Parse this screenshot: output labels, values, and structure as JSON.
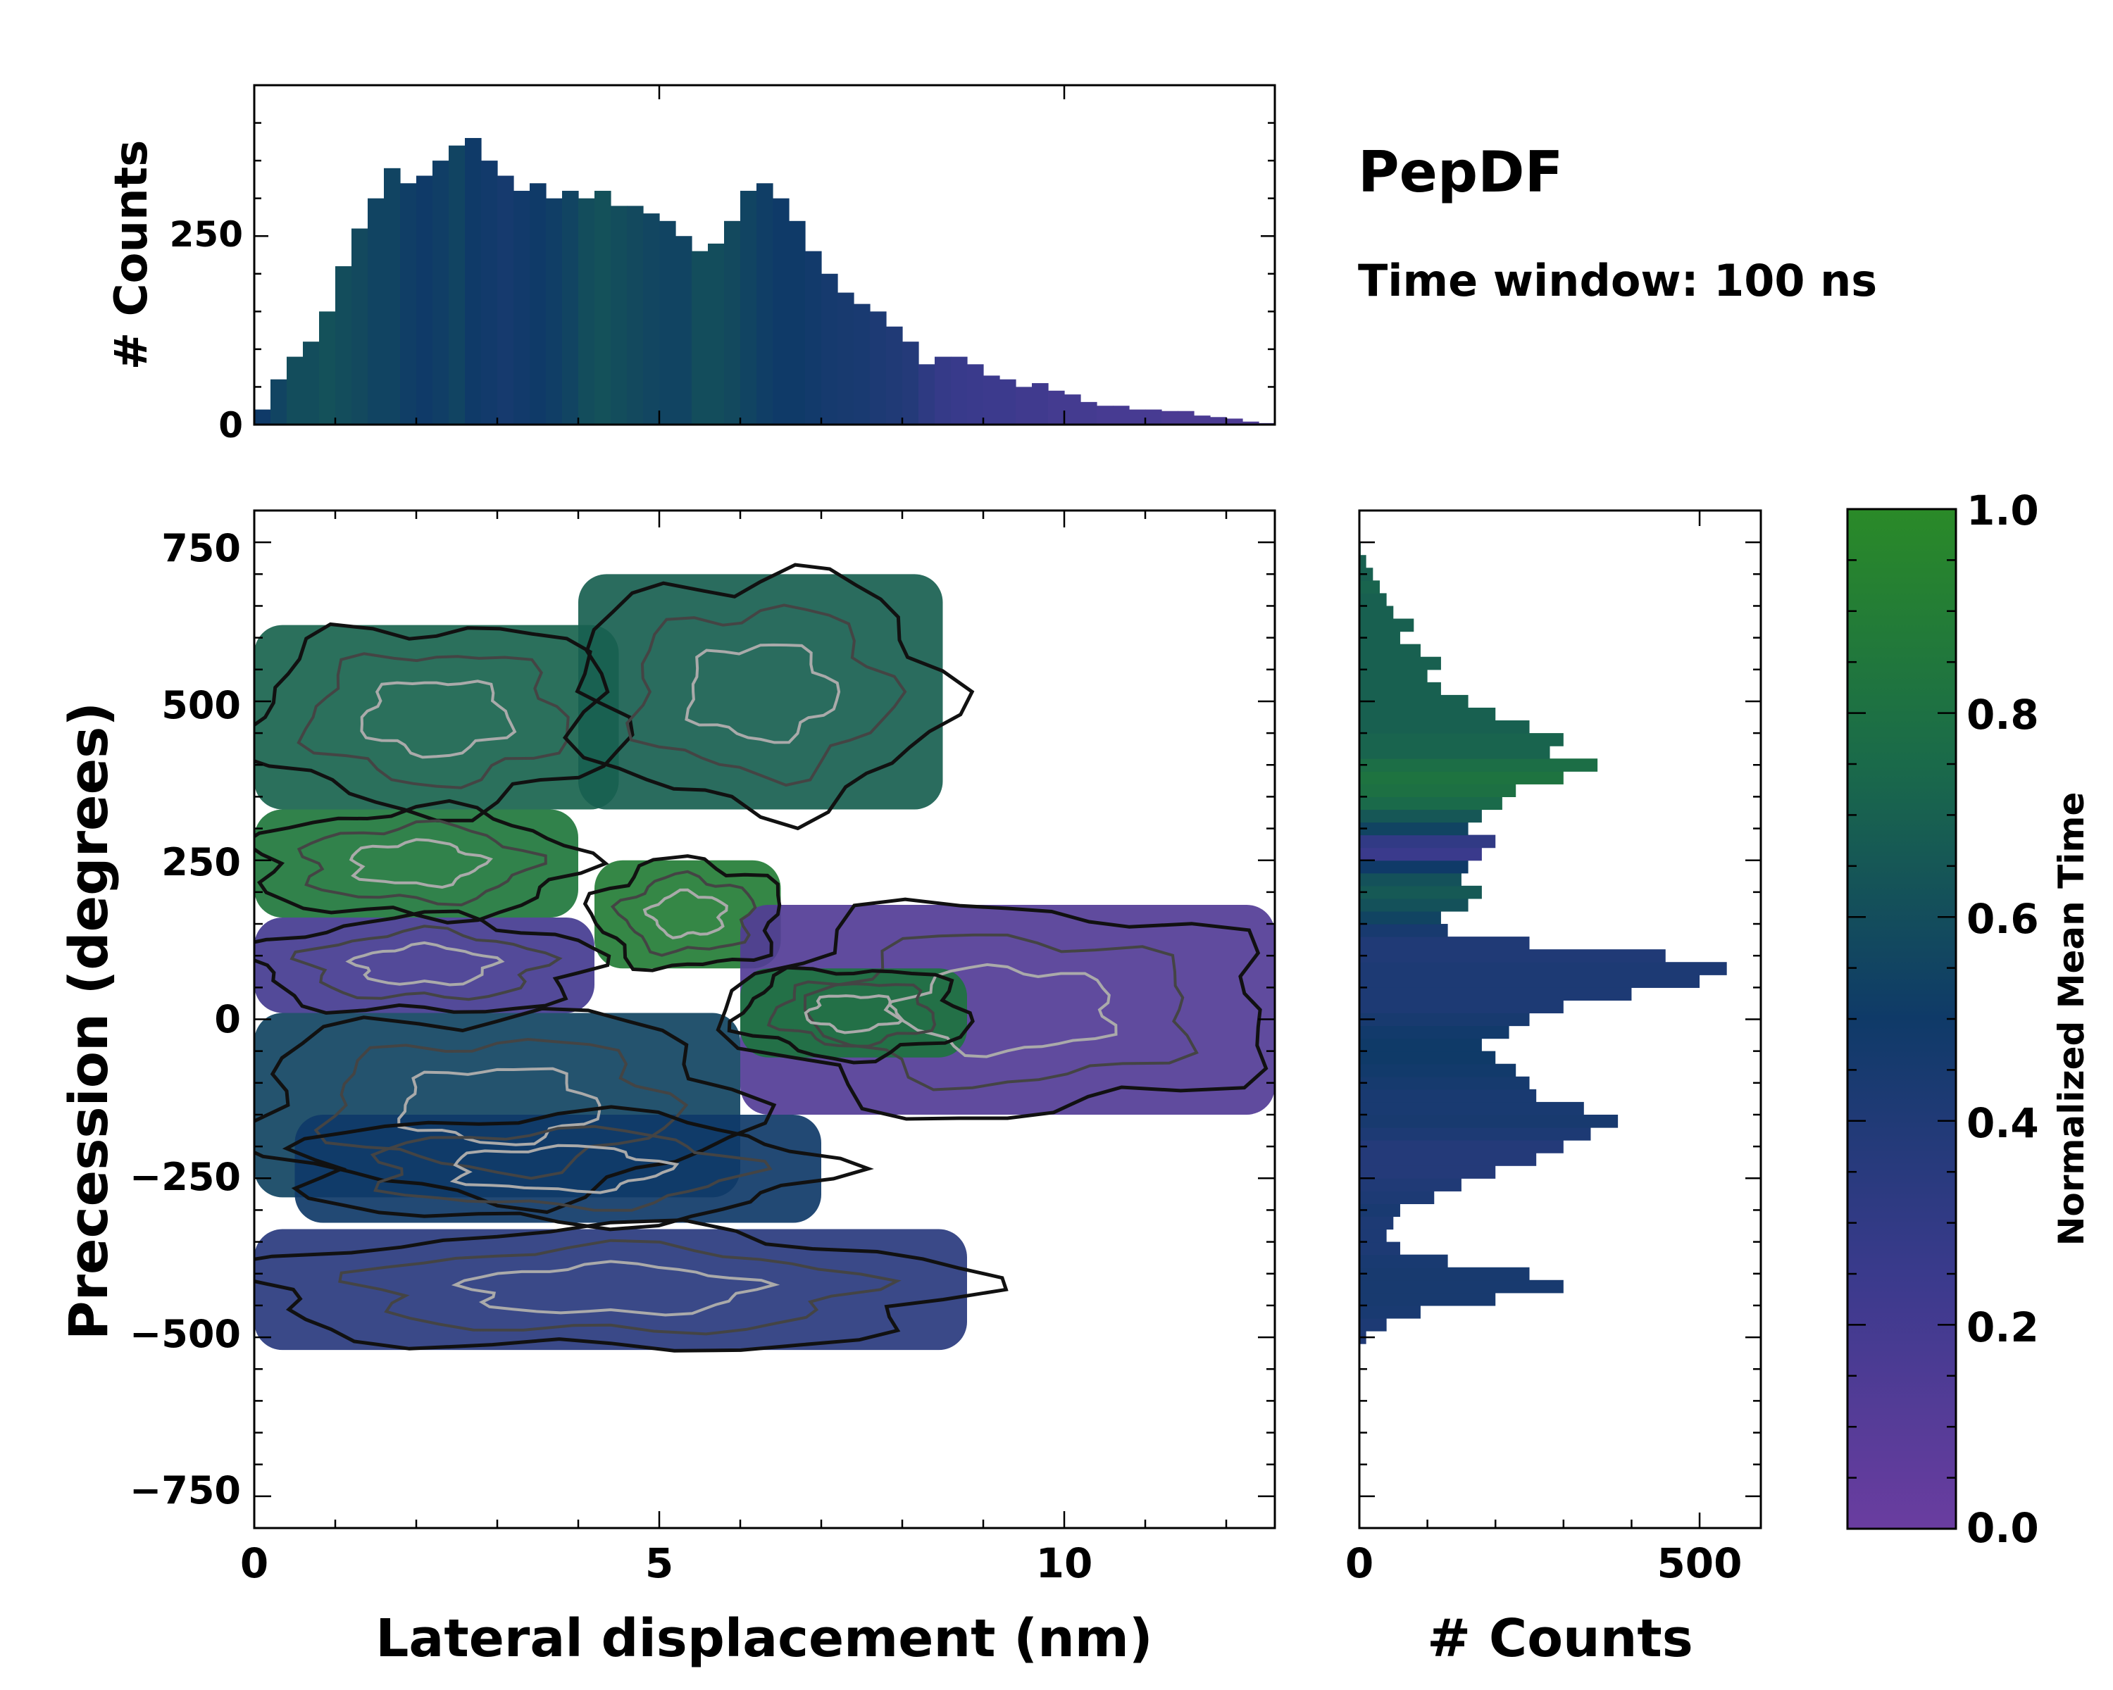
{
  "title": "PepDF",
  "subtitle": "Time window: 100 ns",
  "colors": {
    "purple": "#6a3da0",
    "navy": "#0f3a68",
    "teal": "#1a5e5a",
    "green": "#2a8a28",
    "contour_dark": "#111111",
    "contour_light": "#aaaaaa"
  },
  "chart_data": [
    {
      "id": "top_histogram",
      "type": "bar",
      "ylabel": "# Counts",
      "xlim": [
        0,
        12.6
      ],
      "ylim": [
        0,
        450
      ],
      "yticks": [
        "0",
        "250"
      ],
      "ytick_values": [
        0,
        250
      ],
      "color_by": "Normalized Mean Time",
      "x_centers": [
        0.1,
        0.3,
        0.5,
        0.7,
        0.9,
        1.1,
        1.3,
        1.5,
        1.7,
        1.9,
        2.1,
        2.3,
        2.5,
        2.7,
        2.9,
        3.1,
        3.3,
        3.5,
        3.7,
        3.9,
        4.1,
        4.3,
        4.5,
        4.7,
        4.9,
        5.1,
        5.3,
        5.5,
        5.7,
        5.9,
        6.1,
        6.3,
        6.5,
        6.7,
        6.9,
        7.1,
        7.3,
        7.5,
        7.7,
        7.9,
        8.1,
        8.3,
        8.5,
        8.7,
        8.9,
        9.1,
        9.3,
        9.5,
        9.7,
        9.9,
        10.1,
        10.3,
        10.5,
        10.7,
        10.9,
        11.1,
        11.3,
        11.5,
        11.7,
        11.9,
        12.1,
        12.3,
        12.5
      ],
      "values": [
        20,
        60,
        90,
        110,
        150,
        210,
        260,
        300,
        340,
        320,
        330,
        350,
        370,
        380,
        350,
        330,
        310,
        320,
        300,
        310,
        300,
        310,
        290,
        290,
        280,
        270,
        250,
        230,
        240,
        270,
        310,
        320,
        300,
        270,
        230,
        200,
        175,
        160,
        150,
        130,
        110,
        80,
        90,
        90,
        80,
        65,
        60,
        50,
        55,
        45,
        40,
        30,
        25,
        25,
        20,
        20,
        18,
        18,
        12,
        10,
        8,
        4,
        2
      ],
      "color_values": [
        0.5,
        0.55,
        0.6,
        0.6,
        0.62,
        0.6,
        0.58,
        0.55,
        0.55,
        0.52,
        0.5,
        0.52,
        0.55,
        0.5,
        0.48,
        0.46,
        0.48,
        0.5,
        0.52,
        0.55,
        0.6,
        0.62,
        0.6,
        0.58,
        0.56,
        0.55,
        0.55,
        0.6,
        0.6,
        0.58,
        0.55,
        0.52,
        0.5,
        0.5,
        0.48,
        0.46,
        0.45,
        0.44,
        0.42,
        0.4,
        0.38,
        0.32,
        0.28,
        0.26,
        0.25,
        0.24,
        0.24,
        0.22,
        0.22,
        0.2,
        0.2,
        0.2,
        0.18,
        0.18,
        0.18,
        0.18,
        0.16,
        0.16,
        0.16,
        0.16,
        0.15,
        0.15,
        0.15
      ]
    },
    {
      "id": "heatmap",
      "type": "heatmap",
      "xlabel": "Lateral displacement (nm)",
      "ylabel": "Precession (degrees)",
      "xlim": [
        0,
        12.6
      ],
      "ylim": [
        -800,
        800
      ],
      "xticks": [
        "0",
        "5",
        "10"
      ],
      "xtick_values": [
        0,
        5,
        10
      ],
      "yticks": [
        "750",
        "500",
        "250",
        "0",
        "−250",
        "−500",
        "−750"
      ],
      "ytick_values": [
        750,
        500,
        250,
        0,
        -250,
        -500,
        -750
      ],
      "color_by": "Normalized Mean Time",
      "contours": true,
      "regions": [
        {
          "x": [
            0.0,
            4.5
          ],
          "y": [
            330,
            620
          ],
          "value": 0.72
        },
        {
          "x": [
            4.0,
            8.5
          ],
          "y": [
            330,
            700
          ],
          "value": 0.7
        },
        {
          "x": [
            0.0,
            4.0
          ],
          "y": [
            160,
            330
          ],
          "value": 0.85
        },
        {
          "x": [
            0.0,
            4.2
          ],
          "y": [
            10,
            160
          ],
          "value": 0.2
        },
        {
          "x": [
            4.2,
            6.5
          ],
          "y": [
            80,
            250
          ],
          "value": 0.9
        },
        {
          "x": [
            6.0,
            12.6
          ],
          "y": [
            -150,
            180
          ],
          "value": 0.12
        },
        {
          "x": [
            6.0,
            8.8
          ],
          "y": [
            -60,
            80
          ],
          "value": 0.82
        },
        {
          "x": [
            0.0,
            6.0
          ],
          "y": [
            -280,
            10
          ],
          "value": 0.55
        },
        {
          "x": [
            0.5,
            7.0
          ],
          "y": [
            -320,
            -150
          ],
          "value": 0.5
        },
        {
          "x": [
            0.0,
            8.8
          ],
          "y": [
            -520,
            -330
          ],
          "value": 0.35
        }
      ]
    },
    {
      "id": "right_histogram",
      "type": "bar",
      "orientation": "horizontal",
      "xlabel": "# Counts",
      "xlim": [
        0,
        590
      ],
      "ylim": [
        -800,
        800
      ],
      "xticks": [
        "0",
        "500"
      ],
      "xtick_values": [
        0,
        500
      ],
      "color_by": "Normalized Mean Time",
      "y_centers": [
        -500,
        -480,
        -460,
        -440,
        -420,
        -400,
        -380,
        -360,
        -340,
        -320,
        -300,
        -280,
        -260,
        -240,
        -220,
        -200,
        -180,
        -160,
        -140,
        -120,
        -100,
        -80,
        -60,
        -40,
        -20,
        0,
        20,
        40,
        60,
        80,
        100,
        120,
        140,
        160,
        180,
        200,
        220,
        240,
        260,
        280,
        300,
        320,
        340,
        360,
        380,
        400,
        420,
        440,
        460,
        480,
        500,
        520,
        540,
        560,
        580,
        600,
        620,
        640,
        660,
        680,
        700,
        720,
        740
      ],
      "values": [
        10,
        40,
        90,
        200,
        300,
        250,
        130,
        60,
        40,
        50,
        60,
        110,
        150,
        200,
        260,
        300,
        340,
        380,
        330,
        260,
        250,
        230,
        200,
        180,
        220,
        250,
        300,
        400,
        500,
        540,
        450,
        250,
        130,
        120,
        160,
        180,
        150,
        160,
        180,
        200,
        160,
        180,
        210,
        230,
        300,
        350,
        280,
        300,
        250,
        200,
        160,
        120,
        100,
        120,
        90,
        60,
        80,
        50,
        40,
        30,
        20,
        10,
        2
      ],
      "color_values": [
        0.4,
        0.42,
        0.44,
        0.45,
        0.45,
        0.45,
        0.44,
        0.42,
        0.42,
        0.42,
        0.44,
        0.42,
        0.4,
        0.38,
        0.38,
        0.38,
        0.42,
        0.45,
        0.44,
        0.44,
        0.46,
        0.48,
        0.5,
        0.5,
        0.48,
        0.45,
        0.42,
        0.42,
        0.42,
        0.42,
        0.4,
        0.4,
        0.45,
        0.55,
        0.62,
        0.66,
        0.62,
        0.5,
        0.25,
        0.3,
        0.55,
        0.65,
        0.75,
        0.8,
        0.82,
        0.78,
        0.72,
        0.72,
        0.7,
        0.7,
        0.7,
        0.7,
        0.7,
        0.7,
        0.7,
        0.7,
        0.7,
        0.7,
        0.7,
        0.72,
        0.7,
        0.7,
        0.7
      ]
    },
    {
      "id": "colorbar",
      "type": "colorbar",
      "label": "Normalized Mean Time",
      "range": [
        0.0,
        1.0
      ],
      "ticks": [
        "1.0",
        "0.8",
        "0.6",
        "0.4",
        "0.2",
        "0.0"
      ],
      "tick_values": [
        1.0,
        0.8,
        0.6,
        0.4,
        0.2,
        0.0
      ],
      "stops": [
        {
          "value": 0.0,
          "color": "#6a3da0"
        },
        {
          "value": 0.25,
          "color": "#3a3a8c"
        },
        {
          "value": 0.5,
          "color": "#0f3a68"
        },
        {
          "value": 0.75,
          "color": "#1a6a4a"
        },
        {
          "value": 1.0,
          "color": "#2a8a28"
        }
      ]
    }
  ]
}
